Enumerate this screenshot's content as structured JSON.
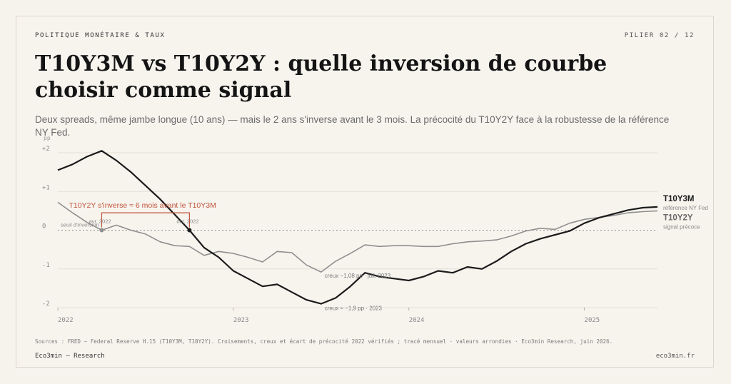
{
  "header": {
    "kicker": "POLITIQUE MONÉTAIRE & TAUX",
    "pager": "PILIER 02 / 12",
    "title": "T10Y3M vs T10Y2Y : quelle inversion de courbe choisir comme signal",
    "subtitle": "Deux spreads, même jambe longue (10 ans) — mais le 2 ans s'inverse avant le 3 mois. La précocité du T10Y2Y face à la robustesse de la référence NY Fed."
  },
  "colors": {
    "background": "#f6f3ed",
    "t10y3m": "#1b1b1b",
    "t10y2y": "#8f8f8f",
    "accent": "#c0533a",
    "grid": "#e4e0d8"
  },
  "chart_data": {
    "type": "line",
    "ylabel": "pp",
    "ylim": [
      -2,
      2
    ],
    "yticks": [
      2,
      1,
      0,
      -1,
      -2
    ],
    "ytick_labels": [
      "+2",
      "+1",
      "0",
      "-1",
      "-2"
    ],
    "xlim": [
      "2022-01",
      "2025-06"
    ],
    "xticks": [
      "2022-01",
      "2023-01",
      "2024-01",
      "2025-01"
    ],
    "xtick_labels": [
      "2022",
      "2023",
      "2024",
      "2025"
    ],
    "x": [
      "2022-01",
      "2022-02",
      "2022-03",
      "2022-04",
      "2022-05",
      "2022-06",
      "2022-07",
      "2022-08",
      "2022-09",
      "2022-10",
      "2022-11",
      "2022-12",
      "2023-01",
      "2023-02",
      "2023-03",
      "2023-04",
      "2023-05",
      "2023-06",
      "2023-07",
      "2023-08",
      "2023-09",
      "2023-10",
      "2023-11",
      "2023-12",
      "2024-01",
      "2024-02",
      "2024-03",
      "2024-04",
      "2024-05",
      "2024-06",
      "2024-07",
      "2024-08",
      "2024-09",
      "2024-10",
      "2024-11",
      "2024-12",
      "2025-01",
      "2025-02",
      "2025-03",
      "2025-04",
      "2025-05",
      "2025-06"
    ],
    "series": [
      {
        "name": "T10Y3M",
        "note": "référence NY Fed",
        "values": [
          1.55,
          1.7,
          1.9,
          2.05,
          1.8,
          1.5,
          1.15,
          0.8,
          0.4,
          0.0,
          -0.45,
          -0.7,
          -1.05,
          -1.25,
          -1.45,
          -1.4,
          -1.6,
          -1.8,
          -1.9,
          -1.75,
          -1.45,
          -1.1,
          -1.2,
          -1.25,
          -1.3,
          -1.2,
          -1.05,
          -1.1,
          -0.95,
          -1.0,
          -0.8,
          -0.55,
          -0.35,
          -0.22,
          -0.12,
          -0.02,
          0.18,
          0.32,
          0.42,
          0.52,
          0.58,
          0.6
        ]
      },
      {
        "name": "T10Y2Y",
        "note": "signal précoce",
        "values": [
          0.72,
          0.45,
          0.2,
          0.0,
          0.13,
          0.0,
          -0.1,
          -0.3,
          -0.4,
          -0.42,
          -0.65,
          -0.55,
          -0.6,
          -0.7,
          -0.82,
          -0.55,
          -0.58,
          -0.9,
          -1.08,
          -0.8,
          -0.6,
          -0.38,
          -0.42,
          -0.4,
          -0.4,
          -0.42,
          -0.42,
          -0.35,
          -0.3,
          -0.28,
          -0.25,
          -0.15,
          -0.02,
          0.05,
          0.02,
          0.18,
          0.28,
          0.33,
          0.38,
          0.45,
          0.48,
          0.5
        ]
      }
    ],
    "threshold": {
      "value": 0,
      "label": "seuil d'inversion"
    },
    "bracket": {
      "label": "T10Y2Y s'inverse ≈ 6 mois avant le T10Y3M",
      "start": "2022-04",
      "end": "2022-10",
      "start_label": "avr. 2022",
      "end_label": "oct. 2022"
    },
    "annotations": [
      {
        "text": "creux −1,08 pp · juil. 2023",
        "x": "2023-07",
        "y": -1.08
      },
      {
        "text": "creux ≈ −1,9 pp · 2023",
        "x": "2023-07",
        "y": -1.9
      }
    ],
    "legend": "end-labels"
  },
  "footer": {
    "sources": "Sources : FRED — Federal Reserve H.15 (T10Y3M, T10Y2Y). Croisements, creux et écart de précocité 2022 vérifiés ; tracé mensuel · valeurs arrondies · Eco3min Research, juin 2026.",
    "left": "Eco3min — Research",
    "right": "eco3min.fr"
  }
}
